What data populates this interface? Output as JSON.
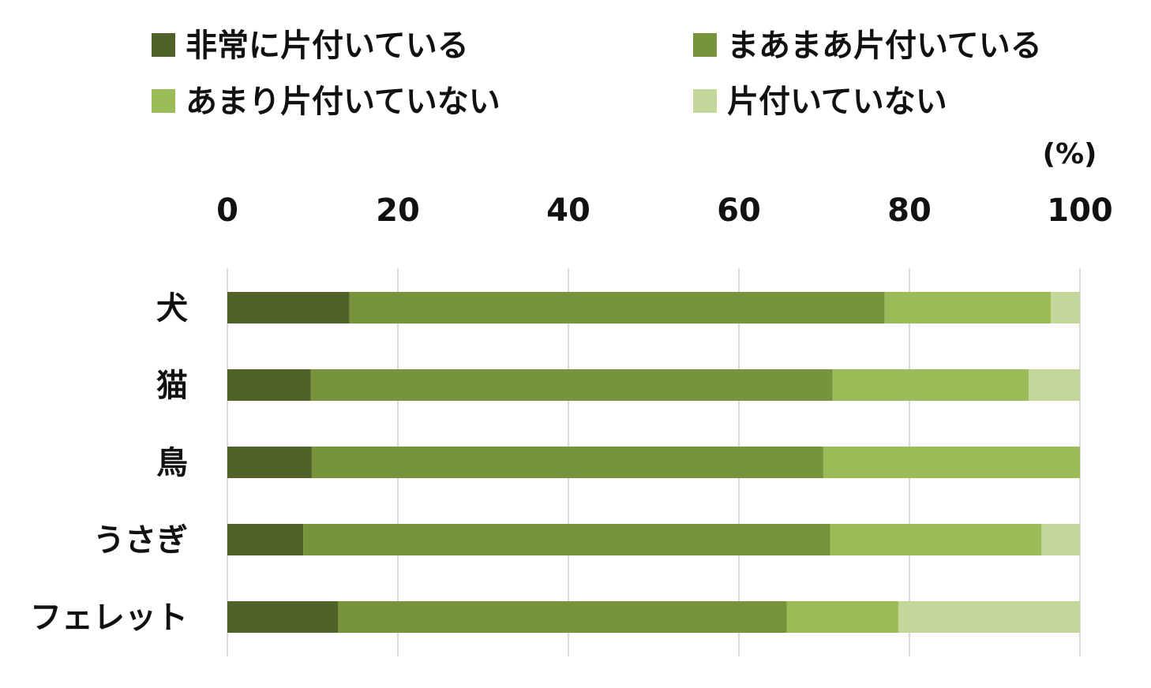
{
  "chart_data": {
    "type": "bar",
    "orientation": "horizontal",
    "stacked": true,
    "unit": "(%)",
    "xlim": [
      0,
      100
    ],
    "xticks": [
      "0",
      "20",
      "40",
      "60",
      "80",
      "100"
    ],
    "grid": true,
    "legend_position": "top",
    "categories": [
      "犬",
      "猫",
      "鳥",
      "うさぎ",
      "フェレット"
    ],
    "series": [
      {
        "name": "非常に片付いている",
        "color": "#4f6228",
        "values": [
          14.3,
          9.8,
          9.9,
          8.9,
          13.0
        ]
      },
      {
        "name": "まあまあ片付いている",
        "color": "#77933c",
        "values": [
          62.8,
          61.2,
          60.0,
          61.8,
          52.6
        ]
      },
      {
        "name": "あまり片付いていない",
        "color": "#9bbb59",
        "values": [
          19.5,
          23.0,
          30.1,
          24.8,
          13.1
        ]
      },
      {
        "name": "片付いていない",
        "color": "#c4d79b",
        "values": [
          3.4,
          6.0,
          0.0,
          4.5,
          21.3
        ]
      }
    ]
  }
}
